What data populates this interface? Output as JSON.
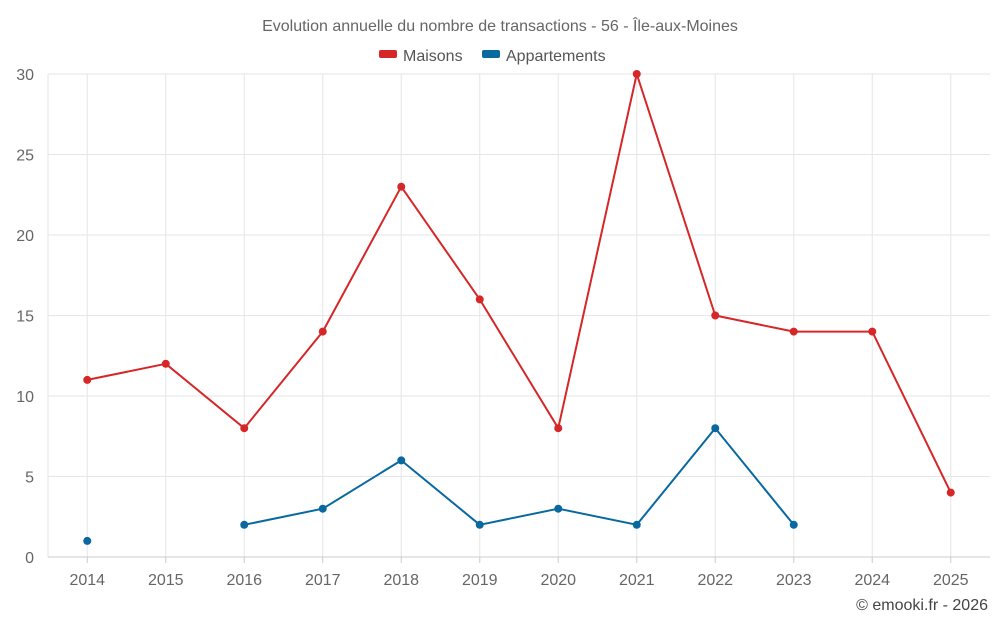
{
  "chart_data": {
    "type": "line",
    "title": "Evolution annuelle du nombre de transactions - 56 - Île-aux-Moines",
    "categories": [
      "2014",
      "2015",
      "2016",
      "2017",
      "2018",
      "2019",
      "2020",
      "2021",
      "2022",
      "2023",
      "2024",
      "2025"
    ],
    "yticks": [
      "0",
      "5",
      "10",
      "15",
      "20",
      "25",
      "30"
    ],
    "ylim": [
      0,
      30
    ],
    "series": [
      {
        "name": "Maisons",
        "color": "#d62728",
        "values": [
          11,
          12,
          8,
          14,
          23,
          16,
          8,
          30,
          15,
          14,
          14,
          4
        ]
      },
      {
        "name": "Appartements",
        "color": "#0868a0",
        "values": [
          1,
          null,
          2,
          3,
          6,
          2,
          3,
          2,
          8,
          2,
          null,
          null
        ]
      }
    ],
    "legend_position": "top-center",
    "grid": true
  },
  "credit": "© emooki.fr - 2026"
}
